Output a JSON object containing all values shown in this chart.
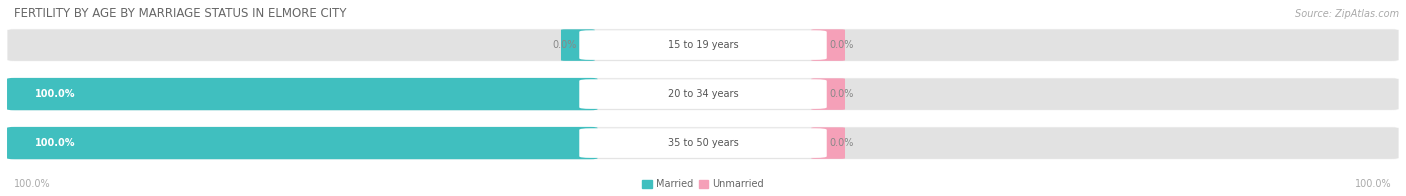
{
  "title": "FERTILITY BY AGE BY MARRIAGE STATUS IN ELMORE CITY",
  "source": "Source: ZipAtlas.com",
  "categories": [
    "15 to 19 years",
    "20 to 34 years",
    "35 to 50 years"
  ],
  "married_values": [
    0.0,
    100.0,
    100.0
  ],
  "unmarried_values": [
    0.0,
    0.0,
    0.0
  ],
  "married_color": "#40bfbf",
  "unmarried_color": "#f5a0b8",
  "bar_bg_color": "#e2e2e2",
  "legend_married": "Married",
  "legend_unmarried": "Unmarried",
  "title_fontsize": 8.5,
  "label_fontsize": 7.0,
  "tick_fontsize": 7.0,
  "source_fontsize": 7.0,
  "value_fontsize": 7.0
}
